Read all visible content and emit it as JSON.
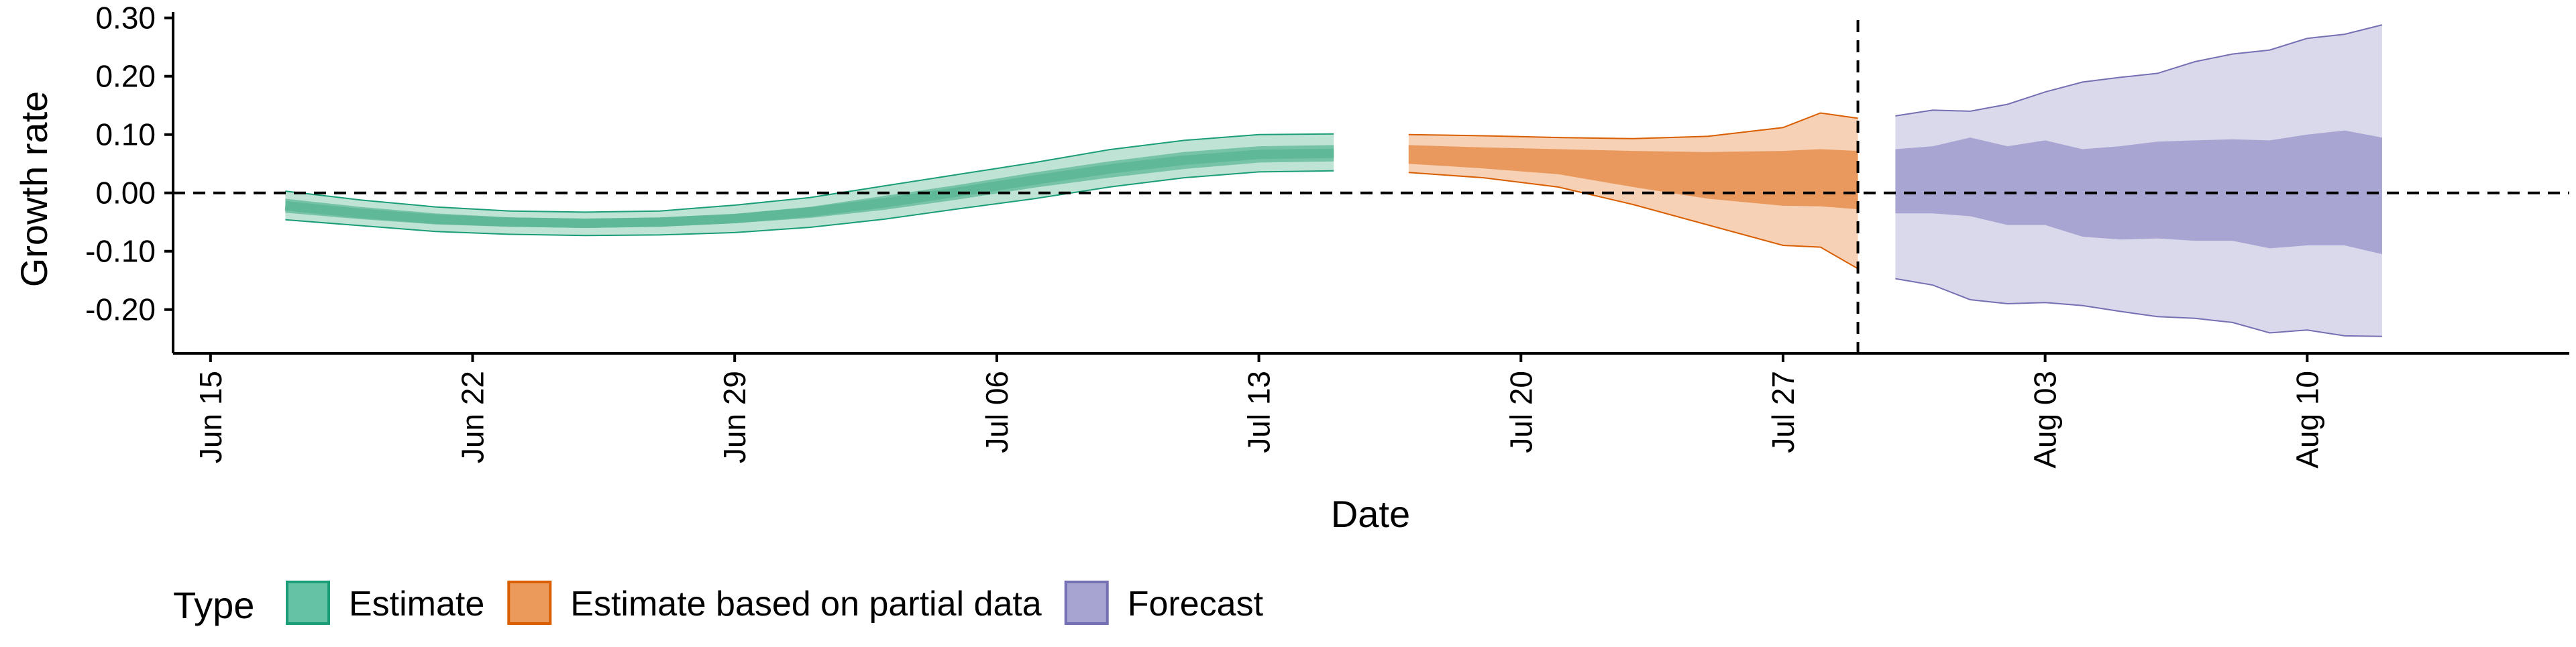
{
  "chart_data": {
    "type": "area",
    "xlabel": "Date",
    "ylabel": "Growth rate",
    "ylim": [
      -0.275,
      0.31
    ],
    "y_ticks": [
      0.3,
      0.2,
      0.1,
      0.0,
      -0.1,
      -0.2
    ],
    "y_tick_labels": [
      "0.30",
      "0.20",
      "0.10",
      "0.00",
      "-0.10",
      "-0.20"
    ],
    "x_range": [
      "2020-06-14",
      "2020-08-17"
    ],
    "x_ticks": [
      "2020-06-15",
      "2020-06-22",
      "2020-06-29",
      "2020-07-06",
      "2020-07-13",
      "2020-07-20",
      "2020-07-27",
      "2020-08-03",
      "2020-08-10"
    ],
    "x_tick_labels": [
      "Jun 15",
      "Jun 22",
      "Jun 29",
      "Jul 06",
      "Jul 13",
      "Jul 20",
      "Jul 27",
      "Aug 03",
      "Aug 10"
    ],
    "reference_lines": {
      "horizontal_y": 0.0,
      "vertical_date": "2020-07-29"
    },
    "legend": {
      "title": "Type",
      "position": "bottom",
      "entries": [
        {
          "label": "Estimate",
          "fill": "#66c2a5",
          "stroke": "#1b9e77"
        },
        {
          "label": "Estimate based on partial data",
          "fill": "#eb9a5b",
          "stroke": "#d95f02"
        },
        {
          "label": "Forecast",
          "fill": "#a8a4d1",
          "stroke": "#7570b3"
        }
      ]
    },
    "series": [
      {
        "name": "Estimate",
        "fill_outer": "#bfe4d6",
        "fill_inner": "#76c3a7",
        "fill_median": "#5fb898",
        "stroke": "#1b9e77",
        "x": [
          "2020-06-17",
          "2020-06-19",
          "2020-06-21",
          "2020-06-23",
          "2020-06-25",
          "2020-06-27",
          "2020-06-29",
          "2020-07-01",
          "2020-07-03",
          "2020-07-05",
          "2020-07-07",
          "2020-07-09",
          "2020-07-11",
          "2020-07-13",
          "2020-07-15"
        ],
        "outer_lower": [
          -0.046,
          -0.056,
          -0.066,
          -0.071,
          -0.073,
          -0.072,
          -0.068,
          -0.059,
          -0.045,
          -0.027,
          -0.01,
          0.01,
          0.026,
          0.036,
          0.038
        ],
        "outer_upper": [
          0.003,
          -0.012,
          -0.024,
          -0.031,
          -0.033,
          -0.031,
          -0.021,
          -0.008,
          0.012,
          0.032,
          0.052,
          0.074,
          0.09,
          0.1,
          0.101
        ],
        "inner_lower": [
          -0.034,
          -0.045,
          -0.054,
          -0.058,
          -0.06,
          -0.058,
          -0.052,
          -0.043,
          -0.029,
          -0.011,
          0.009,
          0.026,
          0.041,
          0.052,
          0.054
        ],
        "inner_upper": [
          -0.01,
          -0.024,
          -0.035,
          -0.042,
          -0.044,
          -0.043,
          -0.036,
          -0.024,
          -0.005,
          0.014,
          0.035,
          0.054,
          0.07,
          0.08,
          0.082
        ],
        "median": [
          -0.022,
          -0.035,
          -0.045,
          -0.05,
          -0.052,
          -0.05,
          -0.044,
          -0.033,
          -0.017,
          0.002,
          0.022,
          0.041,
          0.056,
          0.066,
          0.068
        ]
      },
      {
        "name": "Estimate based on partial data",
        "fill_outer": "#f6d1b6",
        "fill_inner": "#e9995e",
        "stroke": "#d95f02",
        "x": [
          "2020-07-17",
          "2020-07-19",
          "2020-07-21",
          "2020-07-23",
          "2020-07-25",
          "2020-07-27",
          "2020-07-28",
          "2020-07-29"
        ],
        "outer_lower": [
          0.035,
          0.026,
          0.01,
          -0.02,
          -0.055,
          -0.09,
          -0.093,
          -0.13
        ],
        "outer_upper": [
          0.1,
          0.098,
          0.095,
          0.093,
          0.097,
          0.112,
          0.137,
          0.128
        ],
        "inner_lower": [
          0.05,
          0.042,
          0.032,
          0.01,
          -0.01,
          -0.022,
          -0.023,
          -0.028
        ],
        "inner_upper": [
          0.082,
          0.078,
          0.075,
          0.072,
          0.07,
          0.072,
          0.075,
          0.072
        ]
      },
      {
        "name": "Forecast",
        "fill_outer": "#dad9ec",
        "fill_inner": "#a9a5d2",
        "stroke": "#7570b3",
        "x": [
          "2020-07-30",
          "2020-07-31",
          "2020-08-01",
          "2020-08-02",
          "2020-08-03",
          "2020-08-04",
          "2020-08-05",
          "2020-08-06",
          "2020-08-07",
          "2020-08-08",
          "2020-08-09",
          "2020-08-10",
          "2020-08-11",
          "2020-08-12"
        ],
        "outer_lower": [
          -0.147,
          -0.158,
          -0.183,
          -0.19,
          -0.188,
          -0.193,
          -0.203,
          -0.212,
          -0.215,
          -0.222,
          -0.24,
          -0.235,
          -0.245,
          -0.246
        ],
        "outer_upper": [
          0.132,
          0.142,
          0.14,
          0.152,
          0.173,
          0.19,
          0.198,
          0.205,
          0.225,
          0.238,
          0.245,
          0.265,
          0.272,
          0.288
        ],
        "inner_lower": [
          -0.035,
          -0.035,
          -0.04,
          -0.055,
          -0.055,
          -0.075,
          -0.08,
          -0.078,
          -0.082,
          -0.082,
          -0.095,
          -0.09,
          -0.09,
          -0.105
        ],
        "inner_upper": [
          0.075,
          0.08,
          0.095,
          0.08,
          0.09,
          0.075,
          0.08,
          0.088,
          0.09,
          0.092,
          0.09,
          0.1,
          0.107,
          0.095
        ]
      }
    ]
  }
}
